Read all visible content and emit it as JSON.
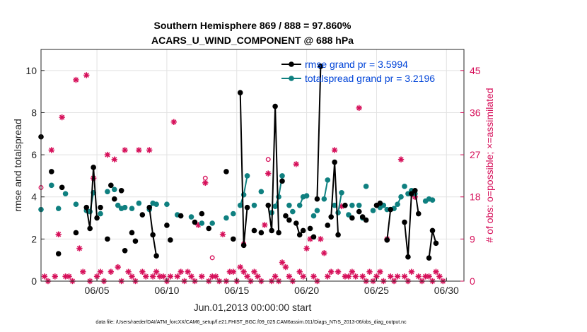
{
  "chart_data": {
    "type": "line",
    "title": [
      "Southern Hemisphere 869 / 888 = 97.860%",
      "ACARS_U_WIND_COMPONENT @ 688 hPa"
    ],
    "xlabel": "Jun.01,2013 00:00:00 start",
    "ylabel": "rmse and totalspread",
    "y2label": "# of obs: o=possible; ×=assimilated",
    "footnote": "data file: /Users/raeder/DAI/ATM_forcXX/CAM6_setup/f.e21.FHIST_BGC.f09_025.CAM6assim.011/Diags_NTrS_2013-06/obs_diag_output.nc",
    "xlim": [
      1,
      31.25
    ],
    "ylim": [
      0,
      11
    ],
    "y2lim": [
      0,
      49.5
    ],
    "xticks": [
      5,
      10,
      15,
      20,
      25,
      30
    ],
    "xticklabels": [
      "06/05",
      "06/10",
      "06/15",
      "06/20",
      "06/25",
      "06/30"
    ],
    "yticks": [
      0,
      2,
      4,
      6,
      8,
      10
    ],
    "y2ticks": [
      0,
      9,
      18,
      27,
      36,
      45
    ],
    "colors": {
      "rmse": "#000000",
      "spread": "#0f8080",
      "obs": "#d6105a",
      "legend_text": "#0044d8"
    },
    "legend": [
      {
        "label": "rmse grand pr = 3.5994",
        "series": "rmse"
      },
      {
        "label": "totalspread grand pr = 3.2196",
        "series": "spread"
      }
    ],
    "rmse_segments": [
      [
        [
          1.0,
          6.85
        ]
      ],
      [
        [
          1.75,
          5.2
        ]
      ],
      [
        [
          2.25,
          1.3
        ]
      ],
      [
        [
          2.5,
          4.45
        ]
      ],
      [
        [
          3.5,
          2.3
        ]
      ],
      [
        [
          4.25,
          3.5
        ],
        [
          4.5,
          2.5
        ],
        [
          4.75,
          5.4
        ],
        [
          5.0,
          3.0
        ]
      ],
      [
        [
          5.25,
          3.5
        ]
      ],
      [
        [
          5.75,
          2.0
        ]
      ],
      [
        [
          6.0,
          4.55
        ]
      ],
      [
        [
          6.25,
          3.9
        ]
      ],
      [
        [
          6.75,
          4.3
        ]
      ],
      [
        [
          7.0,
          1.45
        ]
      ],
      [
        [
          7.5,
          2.3
        ]
      ],
      [
        [
          7.75,
          1.9
        ]
      ],
      [
        [
          8.25,
          3.15
        ]
      ],
      [
        [
          8.75,
          3.5
        ],
        [
          9.0,
          2.2
        ],
        [
          9.25,
          1.2
        ]
      ],
      [
        [
          10.0,
          2.65
        ]
      ],
      [
        [
          10.25,
          1.95
        ]
      ],
      [
        [
          11.0,
          3.1
        ]
      ],
      [
        [
          12.0,
          2.8
        ]
      ],
      [
        [
          12.5,
          3.2
        ]
      ],
      [
        [
          13.0,
          2.5
        ]
      ],
      [
        [
          14.25,
          5.2
        ]
      ],
      [
        [
          14.75,
          2.0
        ]
      ],
      [
        [
          15.25,
          8.95
        ],
        [
          15.5,
          1.7
        ],
        [
          15.75,
          3.5
        ]
      ],
      [
        [
          16.25,
          2.4
        ]
      ],
      [
        [
          16.75,
          2.3
        ]
      ],
      [
        [
          17.25,
          3.6
        ],
        [
          17.5,
          2.4
        ],
        [
          17.75,
          8.3
        ],
        [
          18.0,
          2.3
        ]
      ],
      [
        [
          18.25,
          4.75
        ]
      ],
      [
        [
          18.5,
          3.1
        ]
      ],
      [
        [
          18.75,
          2.9
        ]
      ],
      [
        [
          19.25,
          2.75
        ],
        [
          19.5,
          2.2
        ],
        [
          19.75,
          2.4
        ]
      ],
      [
        [
          20.25,
          2.5
        ]
      ],
      [
        [
          20.5,
          2.1
        ]
      ],
      [
        [
          20.75,
          3.9
        ],
        [
          21.0,
          10.2
        ]
      ],
      [
        [
          21.5,
          2.65
        ]
      ],
      [
        [
          21.75,
          3.05
        ],
        [
          22.0,
          5.65
        ],
        [
          22.25,
          2.2
        ]
      ],
      [
        [
          22.75,
          3.6
        ]
      ],
      [
        [
          23.25,
          3.0
        ]
      ],
      [
        [
          23.75,
          3.3
        ]
      ],
      [
        [
          24.0,
          3.05
        ]
      ],
      [
        [
          24.25,
          2.9
        ]
      ],
      [
        [
          25.0,
          3.6
        ],
        [
          25.25,
          3.7
        ]
      ],
      [
        [
          25.75,
          1.95
        ],
        [
          26.0,
          3.4
        ]
      ],
      [
        [
          27.0,
          2.8
        ],
        [
          27.25,
          1.15
        ],
        [
          27.5,
          4.15
        ]
      ],
      [
        [
          27.75,
          4.3
        ],
        [
          28.0,
          3.2
        ]
      ],
      [
        [
          28.75,
          1.1
        ],
        [
          29.0,
          2.4
        ],
        [
          29.25,
          1.8
        ]
      ]
    ],
    "spread_segments": [
      [
        [
          1.0,
          3.4
        ]
      ],
      [
        [
          1.75,
          4.55
        ]
      ],
      [
        [
          2.25,
          3.45
        ]
      ],
      [
        [
          2.75,
          4.15
        ]
      ],
      [
        [
          3.5,
          3.65
        ]
      ],
      [
        [
          4.25,
          3.35
        ],
        [
          4.5,
          3.3
        ],
        [
          4.75,
          4.2
        ]
      ],
      [
        [
          5.25,
          3.2
        ]
      ],
      [
        [
          5.75,
          4.25
        ]
      ],
      [
        [
          6.25,
          4.35
        ]
      ],
      [
        [
          6.5,
          3.6
        ]
      ],
      [
        [
          6.75,
          3.45
        ]
      ],
      [
        [
          7.0,
          3.5
        ]
      ],
      [
        [
          7.5,
          3.45
        ]
      ],
      [
        [
          8.0,
          3.7
        ]
      ],
      [
        [
          8.75,
          3.4
        ],
        [
          9.0,
          3.7
        ],
        [
          9.25,
          3.65
        ]
      ],
      [
        [
          10.0,
          3.65
        ]
      ],
      [
        [
          10.75,
          3.15
        ]
      ],
      [
        [
          11.75,
          3.05
        ]
      ],
      [
        [
          12.5,
          2.75
        ]
      ],
      [
        [
          13.25,
          2.75
        ]
      ],
      [
        [
          14.25,
          3.0
        ]
      ],
      [
        [
          14.75,
          3.2
        ]
      ],
      [
        [
          15.25,
          3.6
        ],
        [
          15.5,
          4.1
        ],
        [
          15.75,
          5.0
        ]
      ],
      [
        [
          16.25,
          3.6
        ]
      ],
      [
        [
          16.75,
          4.25
        ]
      ],
      [
        [
          17.5,
          3.25
        ]
      ],
      [
        [
          17.75,
          3.55
        ],
        [
          18.0,
          4.0
        ],
        [
          18.25,
          5.0
        ]
      ],
      [
        [
          18.75,
          3.6
        ]
      ],
      [
        [
          19.0,
          3.3
        ]
      ],
      [
        [
          19.5,
          3.6
        ],
        [
          19.75,
          4.0
        ],
        [
          20.0,
          4.05
        ]
      ],
      [
        [
          20.5,
          3.1
        ]
      ],
      [
        [
          20.75,
          3.35
        ]
      ],
      [
        [
          21.25,
          3.9
        ],
        [
          21.5,
          4.8
        ]
      ],
      [
        [
          22.0,
          3.6
        ]
      ],
      [
        [
          22.25,
          3.25
        ],
        [
          22.5,
          4.2
        ]
      ],
      [
        [
          23.0,
          3.15
        ]
      ],
      [
        [
          23.25,
          3.6
        ]
      ],
      [
        [
          23.75,
          3.6
        ]
      ],
      [
        [
          24.0,
          3.0
        ]
      ],
      [
        [
          24.25,
          4.5
        ]
      ],
      [
        [
          24.75,
          3.35
        ]
      ],
      [
        [
          25.25,
          3.5
        ],
        [
          25.5,
          3.6
        ]
      ],
      [
        [
          25.75,
          3.4
        ],
        [
          26.0,
          3.4
        ]
      ],
      [
        [
          26.25,
          3.45
        ],
        [
          26.5,
          3.65
        ],
        [
          26.75,
          4.0
        ]
      ],
      [
        [
          27.0,
          4.5
        ]
      ],
      [
        [
          27.25,
          4.15
        ],
        [
          27.5,
          4.3
        ]
      ],
      [
        [
          27.75,
          4.15
        ]
      ],
      [
        [
          28.5,
          3.8
        ]
      ],
      [
        [
          28.75,
          3.9
        ]
      ],
      [
        [
          29.0,
          3.85
        ]
      ]
    ],
    "obs_assimilated": [
      [
        1.25,
        1
      ],
      [
        1.5,
        0
      ],
      [
        1.75,
        28
      ],
      [
        2.0,
        1
      ],
      [
        2.25,
        10
      ],
      [
        2.5,
        35
      ],
      [
        2.75,
        1
      ],
      [
        3.0,
        1
      ],
      [
        3.25,
        0
      ],
      [
        3.5,
        43
      ],
      [
        3.75,
        7
      ],
      [
        4.0,
        2
      ],
      [
        4.25,
        44
      ],
      [
        4.5,
        0
      ],
      [
        4.75,
        22
      ],
      [
        5.0,
        1
      ],
      [
        5.25,
        2
      ],
      [
        5.5,
        0
      ],
      [
        5.75,
        27
      ],
      [
        6.0,
        2
      ],
      [
        6.25,
        26
      ],
      [
        6.5,
        3
      ],
      [
        6.75,
        0
      ],
      [
        7.0,
        28
      ],
      [
        7.25,
        2
      ],
      [
        7.5,
        1
      ],
      [
        7.75,
        0
      ],
      [
        8.0,
        28
      ],
      [
        8.25,
        2
      ],
      [
        8.5,
        1
      ],
      [
        8.75,
        28
      ],
      [
        9.0,
        1
      ],
      [
        9.25,
        2
      ],
      [
        9.5,
        1
      ],
      [
        9.75,
        1
      ],
      [
        10.0,
        0
      ],
      [
        10.25,
        1
      ],
      [
        10.5,
        34
      ],
      [
        10.75,
        1
      ],
      [
        11.0,
        2
      ],
      [
        11.25,
        0
      ],
      [
        11.5,
        2
      ],
      [
        11.75,
        1
      ],
      [
        12.0,
        0
      ],
      [
        12.25,
        12
      ],
      [
        12.5,
        1
      ],
      [
        12.75,
        21
      ],
      [
        13.0,
        0
      ],
      [
        13.25,
        1
      ],
      [
        13.5,
        1
      ],
      [
        13.75,
        0
      ],
      [
        14.0,
        10
      ],
      [
        14.25,
        0
      ],
      [
        14.5,
        2
      ],
      [
        14.75,
        2
      ],
      [
        15.0,
        0
      ],
      [
        15.25,
        3
      ],
      [
        15.5,
        2
      ],
      [
        15.75,
        1
      ],
      [
        16.0,
        0
      ],
      [
        16.25,
        2
      ],
      [
        16.5,
        1
      ],
      [
        16.75,
        0
      ],
      [
        17.0,
        12
      ],
      [
        17.25,
        23
      ],
      [
        17.5,
        0
      ],
      [
        17.75,
        1
      ],
      [
        18.0,
        0
      ],
      [
        18.25,
        4
      ],
      [
        18.5,
        3
      ],
      [
        18.75,
        1
      ],
      [
        19.0,
        0
      ],
      [
        19.25,
        25
      ],
      [
        19.5,
        2
      ],
      [
        19.75,
        1
      ],
      [
        20.0,
        7
      ],
      [
        20.25,
        9
      ],
      [
        20.5,
        1
      ],
      [
        20.75,
        0
      ],
      [
        21.0,
        9
      ],
      [
        21.25,
        6
      ],
      [
        21.5,
        1
      ],
      [
        21.75,
        2
      ],
      [
        22.0,
        28
      ],
      [
        22.25,
        2
      ],
      [
        22.5,
        16
      ],
      [
        22.75,
        1
      ],
      [
        23.0,
        1
      ],
      [
        23.25,
        2
      ],
      [
        23.5,
        1
      ],
      [
        23.75,
        37
      ],
      [
        24.0,
        1
      ],
      [
        24.25,
        0
      ],
      [
        24.5,
        2
      ],
      [
        24.75,
        0
      ],
      [
        25.0,
        1
      ],
      [
        25.25,
        2
      ],
      [
        25.5,
        0
      ],
      [
        25.75,
        9
      ],
      [
        26.0,
        1
      ],
      [
        26.25,
        0
      ],
      [
        26.5,
        1
      ],
      [
        26.75,
        26
      ],
      [
        27.0,
        1
      ],
      [
        27.25,
        0
      ],
      [
        27.5,
        2
      ],
      [
        27.75,
        18
      ],
      [
        28.0,
        1
      ],
      [
        28.25,
        0
      ],
      [
        28.5,
        1
      ],
      [
        28.75,
        1
      ],
      [
        29.0,
        0
      ],
      [
        29.25,
        2
      ],
      [
        29.5,
        1
      ],
      [
        29.75,
        0
      ]
    ],
    "obs_possible": [
      [
        1.0,
        20
      ],
      [
        12.75,
        22
      ],
      [
        13.25,
        5
      ],
      [
        15.5,
        8
      ],
      [
        17.25,
        26
      ]
    ]
  }
}
